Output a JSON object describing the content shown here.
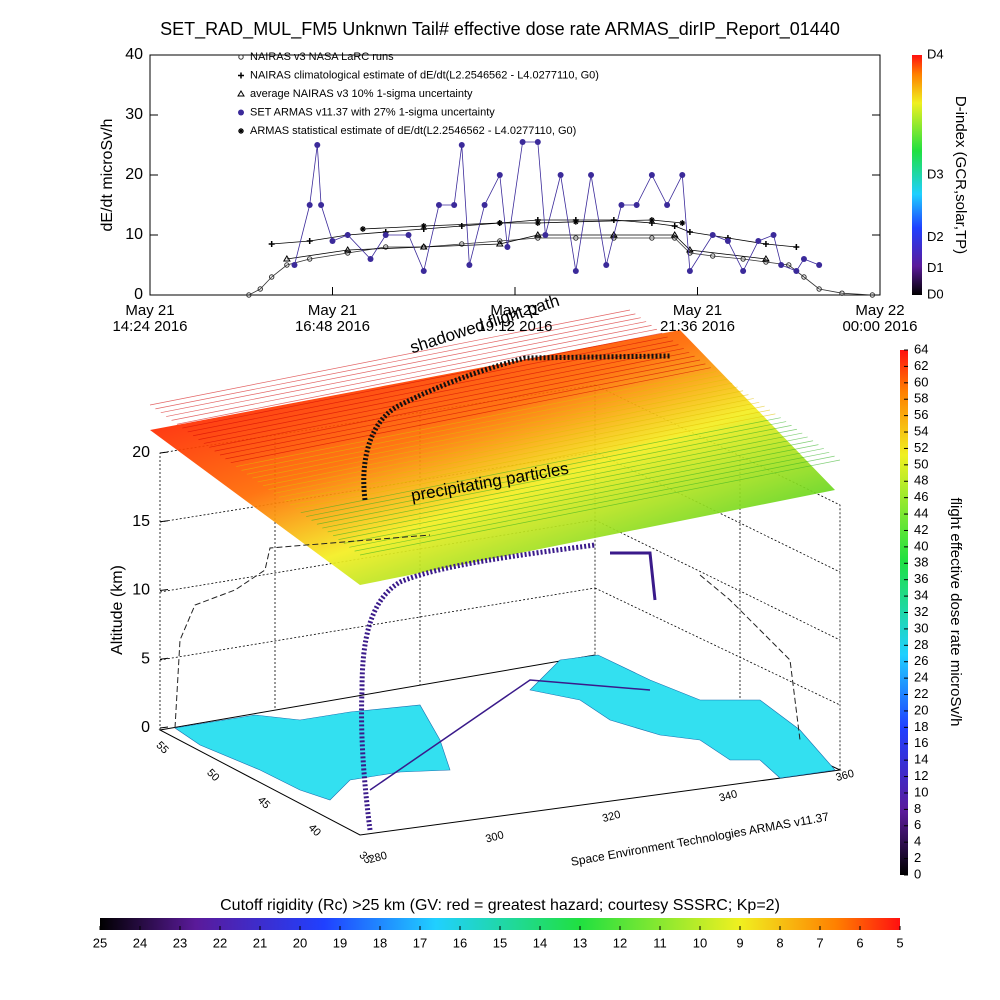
{
  "chart_data": [
    {
      "type": "line",
      "title": "SET_RAD_MUL_FM5 Unknwn Tail#  effective dose rate ARMAS_dirIP_Report_01440",
      "ylabel": "dE/dt microSv/h",
      "xlim": [
        14.4,
        24.0
      ],
      "xticks": [
        {
          "value": 14.4,
          "label": "May 21\n14:24 2016"
        },
        {
          "value": 16.8,
          "label": "May 21\n16:48 2016"
        },
        {
          "value": 19.2,
          "label": "May 21\n19:12 2016"
        },
        {
          "value": 21.6,
          "label": "May 21\n21:36 2016"
        },
        {
          "value": 24.0,
          "label": "May 22\n00:00 2016"
        }
      ],
      "ylim": [
        0,
        40
      ],
      "yticks": [
        0,
        10,
        20,
        30,
        40
      ],
      "series": [
        {
          "name": "NAIRAS v3 NASA LaRC runs",
          "color": "#333333",
          "marker": "circle",
          "x": [
            15.7,
            15.85,
            16.0,
            16.2,
            16.5,
            17.0,
            17.5,
            18.0,
            18.5,
            19.0,
            19.5,
            20.0,
            20.5,
            21.0,
            21.3,
            21.5,
            21.8,
            22.2,
            22.5,
            22.8,
            23.0,
            23.2,
            23.5,
            23.9
          ],
          "values": [
            0,
            1,
            3,
            5,
            6,
            7,
            8,
            8,
            8.5,
            9,
            9.5,
            9.5,
            9.5,
            9.5,
            9.5,
            7,
            6.5,
            6,
            5.5,
            5,
            3,
            1,
            0.3,
            0
          ]
        },
        {
          "name": "NAIRAS climatological estimate of dE/dt(L2.2546562 - L4.0277110, G0)",
          "color": "#000000",
          "marker": "plus",
          "x": [
            16.0,
            16.5,
            17.0,
            17.5,
            18.0,
            18.5,
            19.0,
            19.5,
            20.0,
            20.5,
            21.0,
            21.3,
            21.5,
            22.0,
            22.5,
            22.9
          ],
          "values": [
            8.5,
            9,
            10,
            10.5,
            11,
            11.5,
            12,
            12.5,
            12.5,
            12.5,
            12,
            11.5,
            10.5,
            9.5,
            8.5,
            8
          ]
        },
        {
          "name": "average NAIRAS v3 10% 1-sigma uncertainty",
          "color": "#000000",
          "marker": "triangle",
          "x": [
            16.2,
            17.0,
            18.0,
            19.0,
            19.5,
            20.5,
            21.3,
            21.5,
            22.5
          ],
          "values": [
            6,
            7.5,
            8,
            8.5,
            10,
            10,
            10,
            7.5,
            6
          ]
        },
        {
          "name": "SET ARMAS v11.37 with 27% 1-sigma uncertainty",
          "color": "#3b2a9a",
          "marker": "dot",
          "x": [
            16.3,
            16.5,
            16.6,
            16.65,
            16.8,
            17.0,
            17.3,
            17.5,
            17.8,
            18.0,
            18.2,
            18.4,
            18.5,
            18.6,
            18.8,
            19.0,
            19.1,
            19.3,
            19.5,
            19.6,
            19.8,
            20.0,
            20.2,
            20.4,
            20.6,
            20.8,
            21.0,
            21.2,
            21.4,
            21.5,
            21.8,
            22.0,
            22.2,
            22.4,
            22.6,
            22.7,
            22.9,
            23.0,
            23.2
          ],
          "values": [
            5,
            15,
            25,
            15,
            9,
            10,
            6,
            10,
            10,
            4,
            15,
            15,
            25,
            5,
            15,
            20,
            8,
            25.5,
            25.5,
            10,
            20,
            4,
            20,
            5,
            15,
            15,
            20,
            15,
            20,
            4,
            10,
            9,
            4,
            9,
            10,
            5,
            4,
            6,
            5
          ]
        },
        {
          "name": "ARMAS statistical estimate of dE/dt(L2.2546562 - L4.0277110, G0)",
          "color": "#000000",
          "marker": "star",
          "x": [
            17.2,
            18.0,
            19.0,
            19.5,
            20.0,
            21.0,
            21.4
          ],
          "values": [
            11,
            11.5,
            12,
            12,
            12.2,
            12.5,
            12
          ]
        }
      ],
      "colorbar": {
        "label": "D-index (GCR,solar,TP)",
        "ticks": [
          "D0",
          "D1",
          "D2",
          "D3",
          "D4"
        ]
      }
    },
    {
      "type": "surface3d",
      "zlabel": "Altitude (km)",
      "zlim": [
        0,
        20
      ],
      "zticks": [
        0,
        5,
        10,
        15,
        20
      ],
      "yticks": [
        35,
        40,
        45,
        50,
        55
      ],
      "ylim": [
        35,
        55
      ],
      "xticks": [
        280,
        300,
        320,
        340,
        360
      ],
      "xlim": [
        280,
        360
      ],
      "annotations": [
        "shadowed flight path",
        "precipitating particles"
      ],
      "credit": "Space Environment Technologies ARMAS v11.37",
      "colorbar": {
        "label": "flight effective dose rate microSv/h",
        "clim": [
          0,
          64
        ],
        "ticks": [
          0,
          2,
          4,
          6,
          8,
          10,
          12,
          14,
          16,
          18,
          20,
          22,
          24,
          26,
          28,
          30,
          32,
          34,
          36,
          38,
          40,
          42,
          44,
          46,
          48,
          50,
          52,
          54,
          56,
          58,
          60,
          62,
          64
        ]
      }
    },
    {
      "type": "colorbar",
      "title": "Cutoff rigidity (Rc) >25 km (GV: red = greatest hazard; courtesy SSSRC; Kp=2)",
      "clim": [
        25,
        5
      ],
      "ticks": [
        25,
        24,
        23,
        22,
        21,
        20,
        19,
        18,
        17,
        16,
        15,
        14,
        13,
        12,
        11,
        10,
        9,
        8,
        7,
        6,
        5
      ]
    }
  ]
}
